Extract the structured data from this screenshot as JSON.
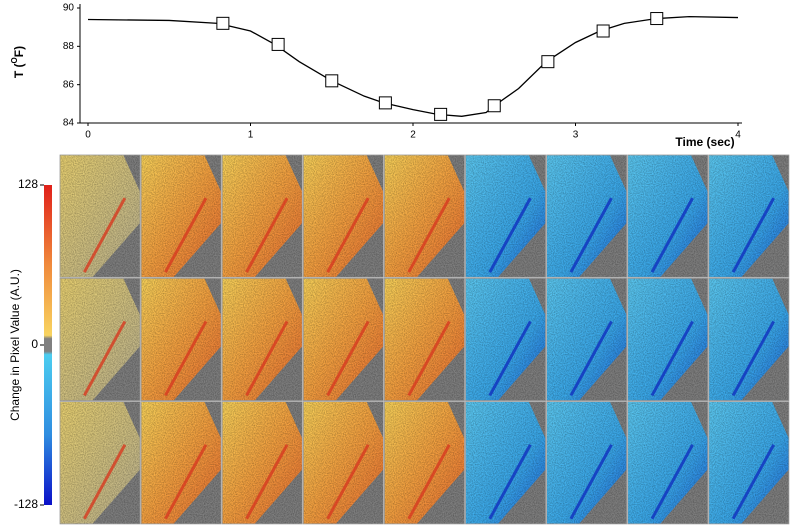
{
  "chart_data": [
    {
      "type": "line",
      "x_label": "Time (sec)",
      "y_label_parts": [
        "T (",
        "O",
        "F)"
      ],
      "x": [
        0,
        0.5,
        0.8,
        1.0,
        1.15,
        1.3,
        1.5,
        1.7,
        1.82,
        2.0,
        2.15,
        2.3,
        2.45,
        2.5,
        2.65,
        2.82,
        3.0,
        3.15,
        3.3,
        3.5,
        3.7,
        4.0
      ],
      "values": [
        89.4,
        89.35,
        89.2,
        88.8,
        88.1,
        87.2,
        86.2,
        85.4,
        85.05,
        84.7,
        84.45,
        84.35,
        84.55,
        84.9,
        85.8,
        87.2,
        88.2,
        88.8,
        89.2,
        89.45,
        89.55,
        89.5
      ],
      "marker_x": [
        0.83,
        1.17,
        1.5,
        1.83,
        2.17,
        2.5,
        2.83,
        3.17,
        3.5
      ],
      "marker_values": [
        89.2,
        88.1,
        86.2,
        85.05,
        84.45,
        84.9,
        87.2,
        88.8,
        89.45
      ],
      "color": "#000000",
      "xlim": [
        0,
        4
      ],
      "ylim": [
        84,
        90
      ],
      "xticks": [
        0,
        1,
        2,
        3,
        4
      ],
      "yticks": [
        84,
        86,
        88,
        90
      ]
    },
    {
      "type": "colorbar",
      "label": "Change in Pixel Value (A.U.)",
      "ylim": [
        -128,
        128
      ],
      "yticks": [
        128,
        0,
        -128
      ]
    }
  ]
}
